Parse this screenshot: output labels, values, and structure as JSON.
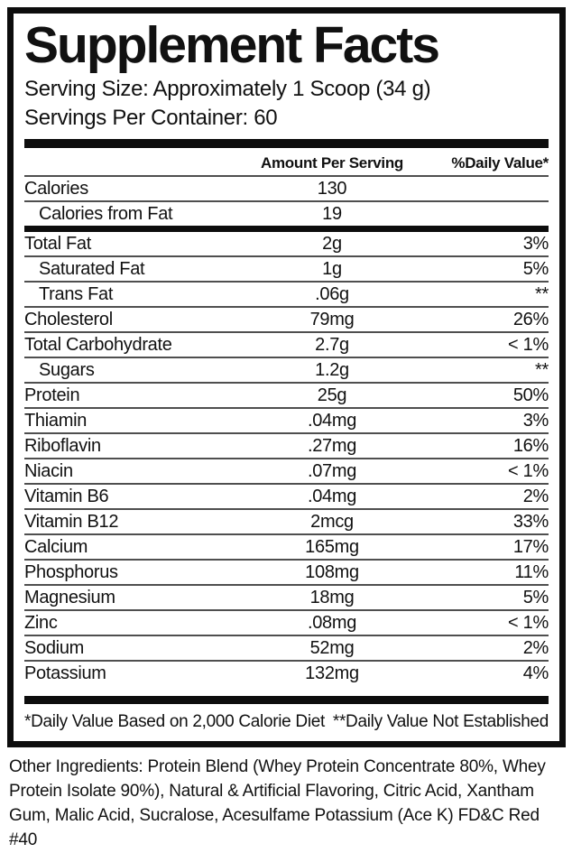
{
  "label": {
    "title": "Supplement Facts",
    "serving_size": "Serving Size: Approximately 1 Scoop (34 g)",
    "servings_per_container": "Servings Per Container: 60",
    "columns": {
      "amount": "Amount Per Serving",
      "daily_value": "%Daily Value*"
    },
    "calorie_rows": [
      {
        "name": "Calories",
        "amount": "130",
        "dv": "",
        "indent": false
      },
      {
        "name": "Calories from Fat",
        "amount": "19",
        "dv": "",
        "indent": true
      }
    ],
    "nutrient_rows": [
      {
        "name": "Total Fat",
        "amount": "2g",
        "dv": "3%",
        "indent": false
      },
      {
        "name": "Saturated Fat",
        "amount": "1g",
        "dv": "5%",
        "indent": true
      },
      {
        "name": "Trans Fat",
        "amount": ".06g",
        "dv": "**",
        "indent": true
      },
      {
        "name": "Cholesterol",
        "amount": "79mg",
        "dv": "26%",
        "indent": false
      },
      {
        "name": "Total Carbohydrate",
        "amount": "2.7g",
        "dv": "< 1%",
        "indent": false
      },
      {
        "name": "Sugars",
        "amount": "1.2g",
        "dv": "**",
        "indent": true
      },
      {
        "name": "Protein",
        "amount": "25g",
        "dv": "50%",
        "indent": false
      },
      {
        "name": "Thiamin",
        "amount": ".04mg",
        "dv": "3%",
        "indent": false
      },
      {
        "name": "Riboflavin",
        "amount": ".27mg",
        "dv": "16%",
        "indent": false
      },
      {
        "name": "Niacin",
        "amount": ".07mg",
        "dv": "< 1%",
        "indent": false
      },
      {
        "name": "Vitamin B6",
        "amount": ".04mg",
        "dv": "2%",
        "indent": false
      },
      {
        "name": "Vitamin B12",
        "amount": "2mcg",
        "dv": "33%",
        "indent": false
      },
      {
        "name": "Calcium",
        "amount": "165mg",
        "dv": "17%",
        "indent": false
      },
      {
        "name": "Phosphorus",
        "amount": "108mg",
        "dv": "11%",
        "indent": false
      },
      {
        "name": "Magnesium",
        "amount": "18mg",
        "dv": "5%",
        "indent": false
      },
      {
        "name": "Zinc",
        "amount": ".08mg",
        "dv": "< 1%",
        "indent": false
      },
      {
        "name": "Sodium",
        "amount": "52mg",
        "dv": "2%",
        "indent": false
      },
      {
        "name": "Potassium",
        "amount": "132mg",
        "dv": "4%",
        "indent": false
      }
    ],
    "footnotes": {
      "left": "*Daily Value Based on 2,000 Calorie Diet",
      "right": "**Daily Value Not Established"
    }
  },
  "other_ingredients": "Other Ingredients: Protein Blend (Whey Protein Concentrate 80%, Whey Protein Isolate 90%), Natural & Artificial Flavoring, Citric Acid, Xantham Gum, Malic Acid, Sucralose, Acesulfame Potassium (Ace K) FD&C Red #40",
  "colors": {
    "text": "#111111",
    "thin_rule": "#4f4f4f",
    "bar": "#0d0d0d",
    "background": "#ffffff"
  }
}
